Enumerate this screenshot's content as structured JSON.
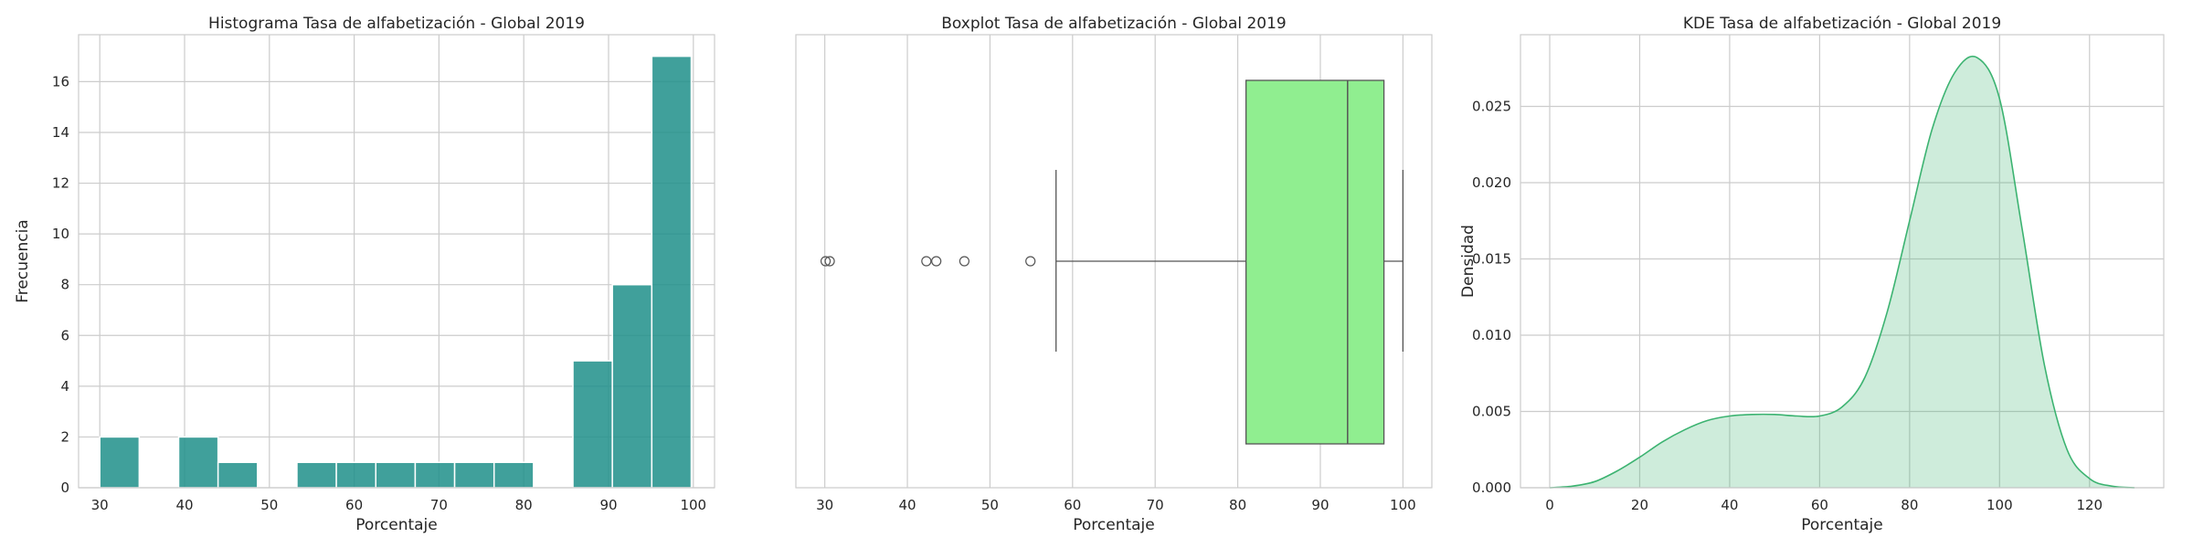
{
  "chart_data": [
    {
      "type": "bar",
      "title": "Histograma Tasa de alfabetización - Global 2019",
      "xlabel": "Porcentaje",
      "ylabel": "Frecuencia",
      "xlim": [
        27.5,
        102.5
      ],
      "ylim": [
        0,
        17.85
      ],
      "xticks": [
        30,
        40,
        50,
        60,
        70,
        80,
        90,
        100
      ],
      "yticks": [
        0,
        2,
        4,
        6,
        8,
        10,
        12,
        14,
        16
      ],
      "grid": true,
      "color": "#1f8f8a",
      "bin_width": 4.65,
      "bins": [
        {
          "start": 30.0,
          "count": 2
        },
        {
          "start": 39.3,
          "count": 2
        },
        {
          "start": 43.95,
          "count": 1
        },
        {
          "start": 53.25,
          "count": 1
        },
        {
          "start": 57.9,
          "count": 1
        },
        {
          "start": 62.55,
          "count": 1
        },
        {
          "start": 67.2,
          "count": 1
        },
        {
          "start": 71.85,
          "count": 1
        },
        {
          "start": 76.5,
          "count": 1
        },
        {
          "start": 85.8,
          "count": 5
        },
        {
          "start": 90.45,
          "count": 8
        },
        {
          "start": 95.1,
          "count": 17
        }
      ]
    },
    {
      "type": "box",
      "title": "Boxplot Tasa de alfabetización - Global 2019",
      "xlabel": "Porcentaje",
      "xlim": [
        26.5,
        103.5
      ],
      "xticks": [
        30,
        40,
        50,
        60,
        70,
        80,
        90,
        100
      ],
      "grid": true,
      "color": "#90ee90",
      "whisker_low": 58,
      "q1": 81,
      "median": 93.3,
      "q3": 97.7,
      "whisker_high": 100,
      "outliers": [
        30.1,
        30.6,
        42.3,
        43.5,
        46.9,
        54.9
      ]
    },
    {
      "type": "area",
      "title": "KDE Tasa de alfabetización - Global 2019",
      "xlabel": "Porcentaje",
      "ylabel": "Densidad",
      "xlim": [
        -6.5,
        136.5
      ],
      "ylim": [
        0,
        0.0297
      ],
      "xticks": [
        0,
        20,
        40,
        60,
        80,
        100,
        120
      ],
      "yticks": [
        0.0,
        0.005,
        0.01,
        0.015,
        0.02,
        0.025
      ],
      "ytick_decimals": 3,
      "grid": true,
      "color": "#3cb371",
      "x": [
        0,
        5,
        10,
        15,
        20,
        25,
        30,
        35,
        40,
        45,
        50,
        55,
        60,
        65,
        70,
        75,
        80,
        85,
        90,
        95,
        100,
        105,
        110,
        115,
        120,
        125,
        130
      ],
      "y": [
        0.0,
        0.0001,
        0.0004,
        0.0011,
        0.002,
        0.003,
        0.0038,
        0.0044,
        0.0047,
        0.0048,
        0.0048,
        0.0047,
        0.0047,
        0.0053,
        0.0072,
        0.0115,
        0.0175,
        0.0235,
        0.0272,
        0.0282,
        0.0255,
        0.017,
        0.008,
        0.0025,
        0.0006,
        0.0001,
        0.0
      ]
    }
  ]
}
